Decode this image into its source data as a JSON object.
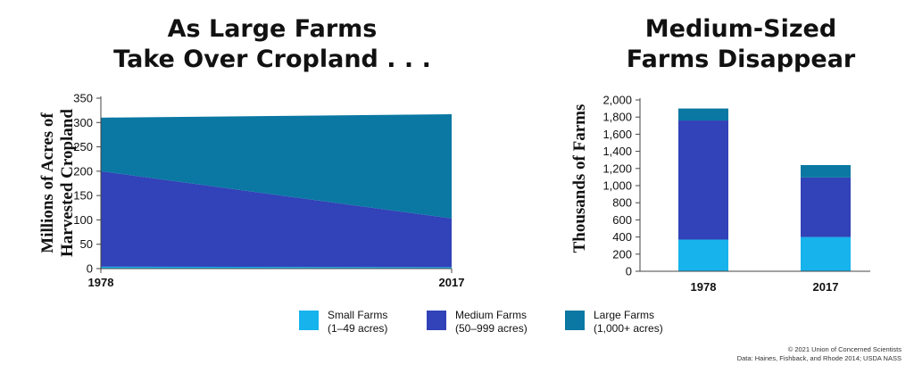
{
  "titles": {
    "left_line1": "As Large Farms",
    "left_line2": "Take Over Cropland . . .",
    "right_line1": "Medium-Sized",
    "right_line2": "Farms Disappear"
  },
  "legend": [
    {
      "name": "Small Farms",
      "range": "(1–49 acres)",
      "color": "#16b3ec"
    },
    {
      "name": "Medium Farms",
      "range": "(50–999 acres)",
      "color": "#3242b8"
    },
    {
      "name": "Large Farms",
      "range": "(1,000+ acres)",
      "color": "#0a78a3"
    }
  ],
  "credits": {
    "line1": "© 2021 Union of Concerned Scientists",
    "line2": "Data: Haines, Fishback, and Rhode 2014; USDA NASS"
  },
  "chart_data": [
    {
      "type": "area",
      "stacked": true,
      "ylabel_line1": "Millions of Acres of",
      "ylabel_line2": "Harvested Cropland",
      "x": [
        "1978",
        "2017"
      ],
      "ylim": [
        0,
        350
      ],
      "yticks": [
        "0",
        "50",
        "100",
        "150",
        "200",
        "250",
        "300",
        "350"
      ],
      "ytick_values": [
        0,
        50,
        100,
        150,
        200,
        250,
        300,
        350
      ],
      "series": [
        {
          "name": "Small Farms",
          "values": [
            4,
            3
          ]
        },
        {
          "name": "Medium Farms",
          "values": [
            196,
            100
          ]
        },
        {
          "name": "Large Farms",
          "values": [
            110,
            214
          ]
        }
      ]
    },
    {
      "type": "bar",
      "stacked": true,
      "ylabel": "Thousands of Farms",
      "categories": [
        "1978",
        "2017"
      ],
      "ylim": [
        0,
        2000
      ],
      "yticks": [
        "0",
        "200",
        "400",
        "600",
        "800",
        "1,000",
        "1,200",
        "1,400",
        "1,600",
        "1,800",
        "2,000"
      ],
      "ytick_values": [
        0,
        200,
        400,
        600,
        800,
        1000,
        1200,
        1400,
        1600,
        1800,
        2000
      ],
      "series": [
        {
          "name": "Small Farms",
          "values": [
            370,
            400
          ]
        },
        {
          "name": "Medium Farms",
          "values": [
            1390,
            695
          ]
        },
        {
          "name": "Large Farms",
          "values": [
            140,
            145
          ]
        }
      ]
    }
  ]
}
